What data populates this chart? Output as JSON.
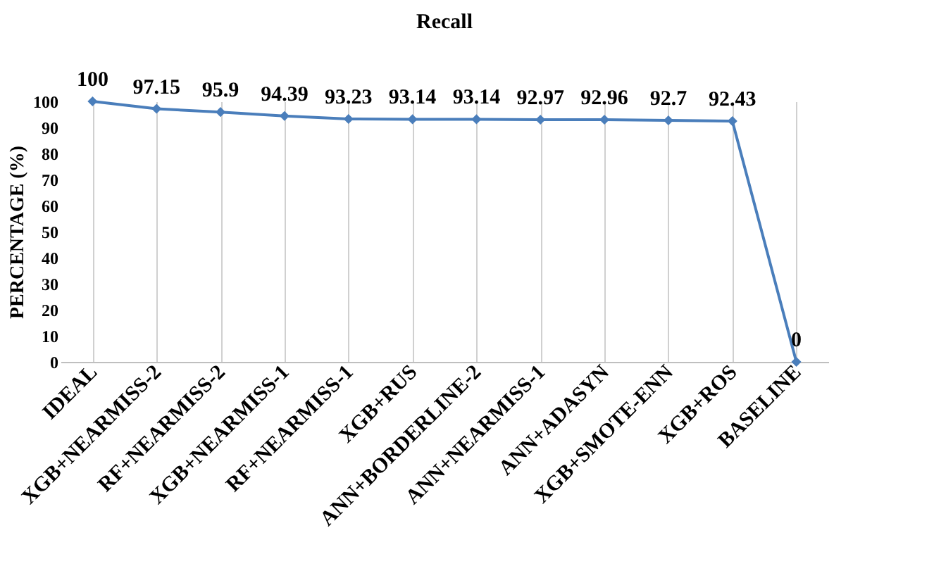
{
  "chart_data": {
    "type": "line",
    "title": "Recall",
    "ylabel": "PERCENTAGE (%)",
    "categories": [
      "IDEAL",
      "XGB+NEARMISS-2",
      "RF+NEARMISS-2",
      "XGB+NEARMISS-1",
      "RF+NEARMISS-1",
      "XGB+RUS",
      "ANN+BORDERLINE-2",
      "ANN+NEARMISS-1",
      "ANN+ADASYN",
      "XGB+SMOTE-ENN",
      "XGB+ROS",
      "BASELINE"
    ],
    "series": [
      {
        "color": "#4a7ebb",
        "values": [
          100,
          97.15,
          95.9,
          94.39,
          93.23,
          93.14,
          93.14,
          92.97,
          92.96,
          92.7,
          92.43,
          0
        ]
      }
    ],
    "ylim": [
      0,
      100
    ],
    "yticks": [
      0,
      10,
      20,
      30,
      40,
      50,
      60,
      70,
      80,
      90,
      100
    ],
    "grid": "x",
    "marker": "diamond",
    "line_style": "solid",
    "data_labels": true
  }
}
